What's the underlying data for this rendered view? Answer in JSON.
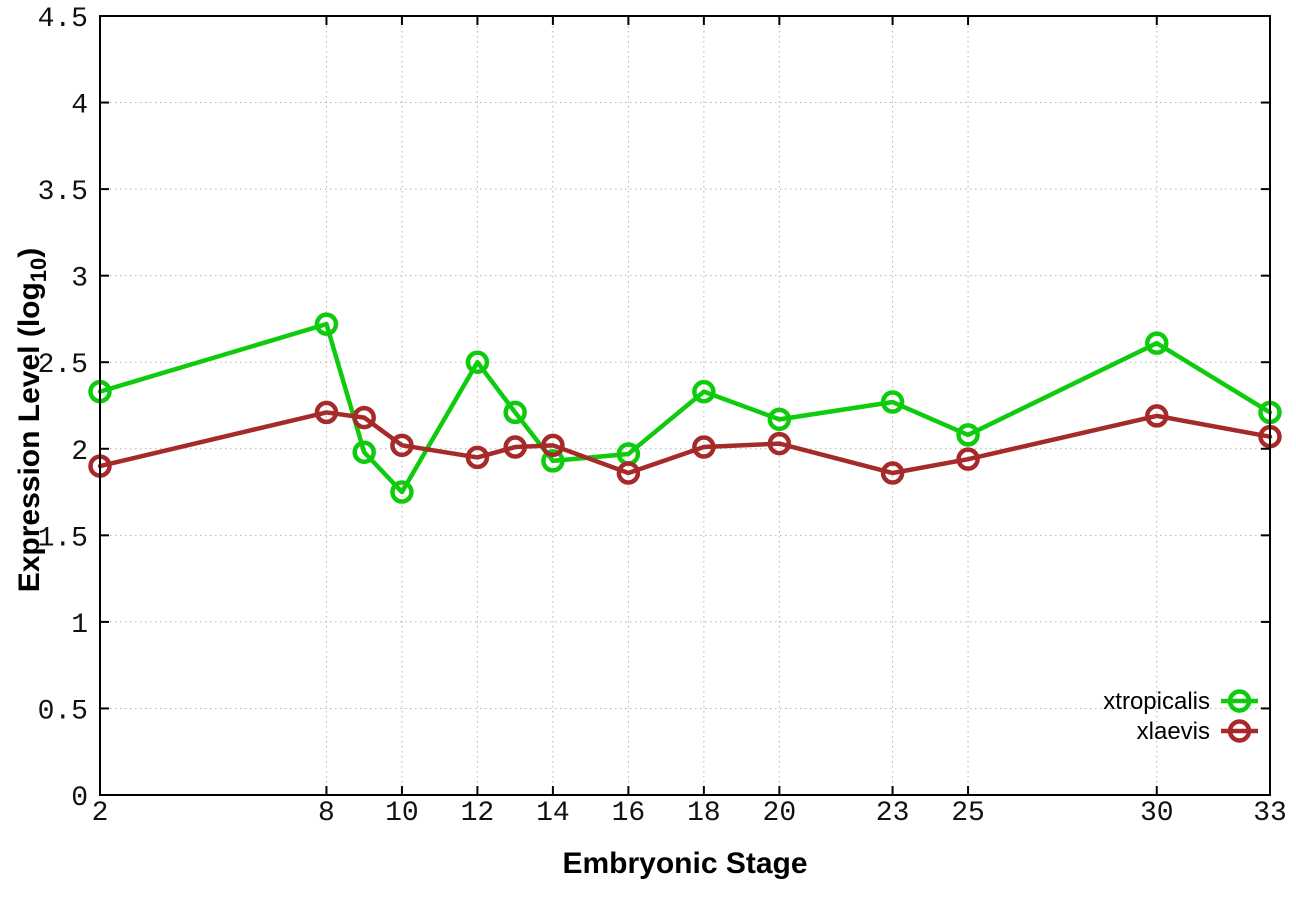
{
  "chart_data": {
    "type": "line",
    "title": "",
    "xlabel": "Embryonic Stage",
    "ylabel": "Expression Level (log10)",
    "ylabel_main": "Expression Level (log",
    "ylabel_sub": "10",
    "ylabel_close": ")",
    "x": [
      2,
      8,
      9,
      10,
      12,
      13,
      14,
      16,
      18,
      20,
      23,
      25,
      30,
      33
    ],
    "series": [
      {
        "name": "xtropicalis",
        "color": "#0ecb0e",
        "values": [
          2.33,
          2.72,
          1.98,
          1.75,
          2.5,
          2.21,
          1.93,
          1.97,
          2.33,
          2.17,
          2.27,
          2.08,
          2.61,
          2.21
        ]
      },
      {
        "name": "xlaevis",
        "color": "#a62a2a",
        "values": [
          1.9,
          2.21,
          2.18,
          2.02,
          1.95,
          2.01,
          2.02,
          1.86,
          2.01,
          2.03,
          1.86,
          1.94,
          2.19,
          2.07
        ]
      }
    ],
    "xticks": [
      2,
      8,
      10,
      12,
      14,
      16,
      18,
      20,
      23,
      25,
      30,
      33
    ],
    "yticks": [
      0,
      0.5,
      1,
      1.5,
      2,
      2.5,
      3,
      3.5,
      4,
      4.5
    ],
    "xlim": [
      2,
      33
    ],
    "ylim": [
      0,
      4.5
    ],
    "grid": true,
    "legend_position": "bottom-right",
    "marker": "open-circle",
    "colors": {
      "background": "#ffffff",
      "axis": "#000000",
      "grid": "#b4b4b4",
      "text": "#000000"
    }
  }
}
